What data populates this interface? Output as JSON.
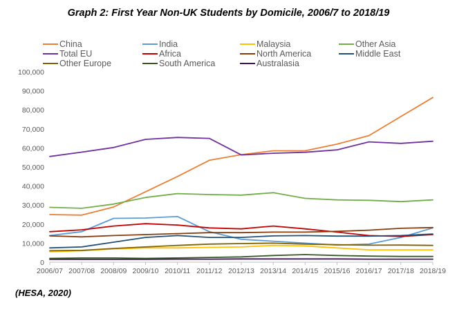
{
  "title": "Graph 2: First Year Non-UK Students by Domicile, 2006/7 to 2018/19",
  "source": "(HESA, 2020)",
  "chart_data": {
    "type": "line",
    "categories": [
      "2006/07",
      "2007/08",
      "2008/09",
      "2009/10",
      "2010/11",
      "2011/12",
      "2012/13",
      "2013/14",
      "2014/15",
      "2015/16",
      "2016/17",
      "2017/18",
      "2018/19"
    ],
    "ylim": [
      0,
      100000
    ],
    "yticks": [
      "0",
      "10,000",
      "20,000",
      "30,000",
      "40,000",
      "50,000",
      "60,000",
      "70,000",
      "80,000",
      "90,000",
      "100,000"
    ],
    "grid": false,
    "legend_position": "top",
    "series": [
      {
        "name": "China",
        "color": "#ed7d31",
        "values": [
          25000,
          24700,
          29000,
          37000,
          45000,
          53500,
          56500,
          58500,
          58500,
          62000,
          66500,
          76500,
          86500
        ]
      },
      {
        "name": "India",
        "color": "#5b9bd5",
        "values": [
          14000,
          16000,
          23000,
          23200,
          24000,
          16000,
          12000,
          11000,
          10000,
          9000,
          9500,
          13000,
          18000
        ]
      },
      {
        "name": "Malaysia",
        "color": "#ffc000",
        "values": [
          5500,
          6000,
          7000,
          7500,
          7500,
          7800,
          8000,
          8800,
          8500,
          7500,
          6500,
          6500,
          6500
        ]
      },
      {
        "name": "Other Asia",
        "color": "#70ad47",
        "values": [
          28800,
          28300,
          30500,
          34000,
          36000,
          35500,
          35200,
          36500,
          33500,
          32700,
          32500,
          31800,
          32700
        ]
      },
      {
        "name": "Total EU",
        "color": "#7030a0",
        "values": [
          55500,
          57800,
          60200,
          64500,
          65500,
          65000,
          56300,
          57200,
          57700,
          59000,
          63200,
          62400,
          63500
        ]
      },
      {
        "name": "Africa",
        "color": "#c00000",
        "values": [
          16000,
          17000,
          19000,
          20200,
          19500,
          18000,
          17500,
          19000,
          17500,
          15800,
          14000,
          13500,
          14500
        ]
      },
      {
        "name": "North America",
        "color": "#843c0c",
        "values": [
          13800,
          13300,
          14000,
          14500,
          15000,
          15500,
          15500,
          15800,
          15800,
          16200,
          16800,
          17800,
          18200
        ]
      },
      {
        "name": "Middle East",
        "color": "#1f4e79",
        "values": [
          7500,
          8000,
          10500,
          13000,
          14000,
          13000,
          13000,
          13800,
          14000,
          13700,
          13700,
          14000,
          14800
        ]
      },
      {
        "name": "Other Europe",
        "color": "#806000",
        "values": [
          6000,
          6200,
          7200,
          8000,
          8800,
          9500,
          9800,
          10000,
          9500,
          9200,
          8900,
          9000,
          8800
        ]
      },
      {
        "name": "South America",
        "color": "#375623",
        "values": [
          2000,
          2200,
          2200,
          2000,
          2200,
          2500,
          2800,
          3500,
          4000,
          3500,
          3200,
          3000,
          3000
        ]
      },
      {
        "name": "Australasia",
        "color": "#3f1060",
        "values": [
          1500,
          1500,
          1500,
          1500,
          1600,
          1600,
          1700,
          1700,
          1700,
          1700,
          1600,
          1600,
          1600
        ]
      }
    ]
  }
}
